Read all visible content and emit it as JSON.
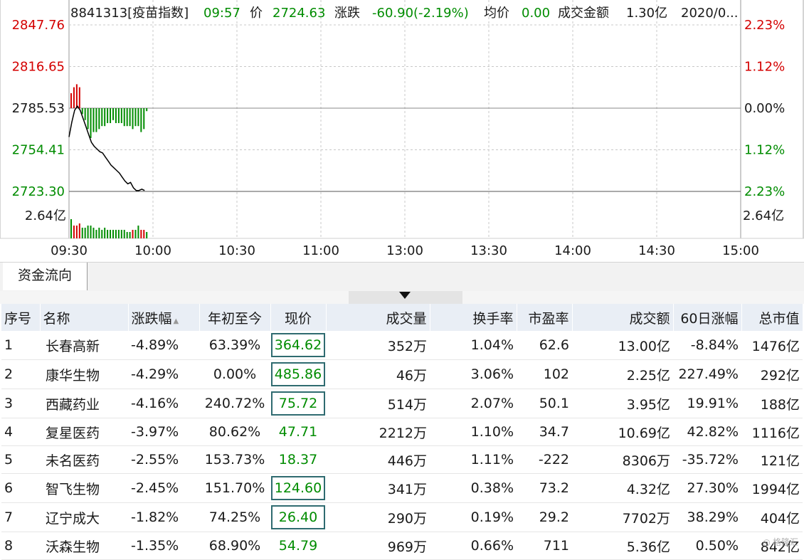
{
  "chart_data": {
    "type": "line",
    "title": "8841313[疫苗指数]",
    "info": {
      "code": "8841313[疫苗指数]",
      "time": "09:57",
      "price_label": "价",
      "price": "2724.63",
      "change_label": "涨跌",
      "change": "-60.90(-2.19%)",
      "avg_label": "均价",
      "avg": "0.00",
      "amount_label": "成交金额",
      "amount": "1.30亿",
      "date": "2020/0..."
    },
    "y_left_ticks": [
      "2847.76",
      "2816.65",
      "2785.53",
      "2754.41",
      "2723.30"
    ],
    "y_right_ticks": [
      "2.23%",
      "1.12%",
      "0.00%",
      "1.12%",
      "2.23%"
    ],
    "ylim": [
      2723.3,
      2847.76
    ],
    "prev_close": 2785.53,
    "volume_tick": "2.64亿",
    "x_ticks": [
      "09:30",
      "10:00",
      "10:30",
      "11:00",
      "13:00",
      "13:30",
      "14:00",
      "14:30",
      "15:00"
    ],
    "series": [
      {
        "x_minutes": [
          0,
          1,
          2,
          3,
          4,
          5,
          6,
          7,
          8,
          9,
          10,
          11,
          12,
          13,
          14,
          15,
          16,
          17,
          18,
          19,
          20,
          21,
          22,
          23,
          24,
          25,
          26,
          27
        ],
        "values": [
          2764,
          2775,
          2784,
          2787,
          2784,
          2778,
          2772,
          2766,
          2760,
          2757,
          2755,
          2753,
          2752,
          2749,
          2746,
          2743,
          2741,
          2739,
          2737,
          2734,
          2731,
          2729,
          2730,
          2726,
          2724,
          2724,
          2725,
          2724
        ]
      }
    ],
    "flow_bars": [
      5,
      7,
      8,
      7,
      -2,
      -4,
      -7,
      -10,
      -8,
      -8,
      -7,
      -6,
      -6,
      -5,
      -5,
      -4,
      -5,
      -5,
      -5,
      -6,
      -6,
      -6,
      -7,
      -6,
      -6,
      -8,
      -7,
      -1
    ],
    "volume_bars": [
      9,
      6,
      6,
      7,
      5,
      5,
      6,
      6,
      5,
      4,
      5,
      4,
      5,
      4,
      4,
      4,
      4,
      4,
      4,
      4,
      3,
      3,
      4,
      4,
      6,
      4,
      4,
      3
    ],
    "colors": {
      "up": "#d40000",
      "down": "#008c00",
      "price_line": "#000000"
    }
  },
  "tab": {
    "label": "资金流向"
  },
  "table": {
    "headers": [
      "序号",
      "名称",
      "涨跌幅",
      "年初至今",
      "现价",
      "成交量",
      "换手率",
      "市盈率",
      "成交额",
      "60日涨幅",
      "总市值"
    ],
    "rows": [
      [
        "1",
        "长春高新",
        "-4.89%",
        "63.39%",
        "364.62",
        "352万",
        "1.04%",
        "62.6",
        "13.00亿",
        "-8.84%",
        "1476亿"
      ],
      [
        "2",
        "康华生物",
        "-4.29%",
        "0.00%",
        "485.86",
        "46万",
        "3.06%",
        "102",
        "2.25亿",
        "227.49%",
        "292亿"
      ],
      [
        "3",
        "西藏药业",
        "-4.16%",
        "240.72%",
        "75.72",
        "514万",
        "2.07%",
        "50.1",
        "3.95亿",
        "19.91%",
        "188亿"
      ],
      [
        "4",
        "复星医药",
        "-3.97%",
        "80.62%",
        "47.71",
        "2212万",
        "1.10%",
        "34.7",
        "10.69亿",
        "42.82%",
        "1116亿"
      ],
      [
        "5",
        "未名医药",
        "-2.55%",
        "153.73%",
        "18.37",
        "446万",
        "1.11%",
        "-222",
        "8306万",
        "-35.72%",
        "121亿"
      ],
      [
        "6",
        "智飞生物",
        "-2.45%",
        "151.70%",
        "124.60",
        "341万",
        "0.38%",
        "73.2",
        "4.32亿",
        "27.30%",
        "1994亿"
      ],
      [
        "7",
        "辽宁成大",
        "-1.82%",
        "74.25%",
        "26.40",
        "290万",
        "0.19%",
        "29.2",
        "7702万",
        "38.29%",
        "404亿"
      ],
      [
        "8",
        "沃森生物",
        "-1.35%",
        "68.90%",
        "54.79",
        "969万",
        "0.66%",
        "711",
        "5.36亿",
        "0.50%",
        "842亿"
      ]
    ]
  },
  "watermark": "格隆汇"
}
